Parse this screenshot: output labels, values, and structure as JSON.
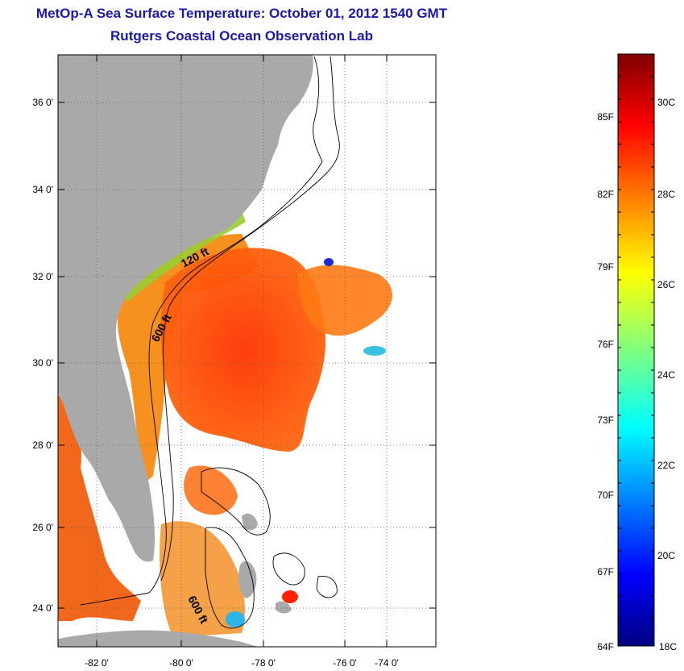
{
  "header": {
    "title": "MetOp-A Sea Surface Temperature:  October 01, 2012 1540 GMT",
    "subtitle": "Rutgers Coastal Ocean Observation Lab"
  },
  "map": {
    "lat_ticks": [
      "36 0'",
      "34 0'",
      "32 0'",
      "30 0'",
      "28 0'",
      "26 0'",
      "24 0'"
    ],
    "lon_ticks": [
      "-82 0'",
      "-80 0'",
      "-78 0'",
      "-76 0'",
      "-74 0'"
    ],
    "contours": [
      "120 ft",
      "600 ft",
      "600 ft"
    ],
    "land_color": "#a9a9a9",
    "ocean_color": "#ffffff"
  },
  "colorbar": {
    "fahrenheit": [
      "85F",
      "82F",
      "79F",
      "76F",
      "73F",
      "70F",
      "67F",
      "64F"
    ],
    "celsius": [
      "30C",
      "28C",
      "26C",
      "24C",
      "22C",
      "20C",
      "18C"
    ],
    "colors": [
      "#00007f",
      "#0000ff",
      "#00ffff",
      "#ffff00",
      "#ff0000",
      "#7f0000"
    ]
  }
}
